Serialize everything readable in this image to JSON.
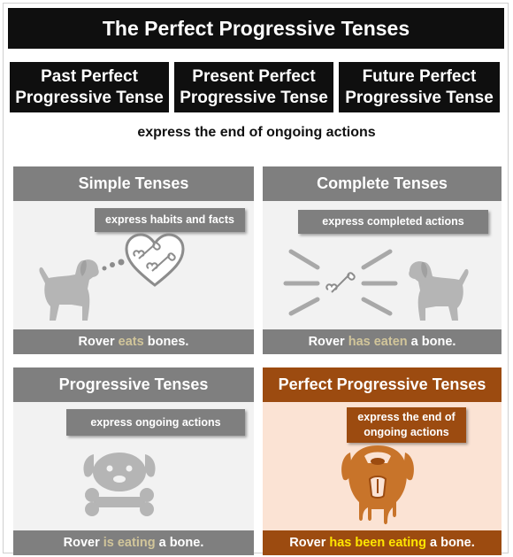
{
  "title": "The Perfect Progressive Tenses",
  "tenses": [
    {
      "line1": "Past Perfect",
      "line2": "Progressive Tense"
    },
    {
      "line1": "Present Perfect",
      "line2": "Progressive Tense"
    },
    {
      "line1": "Future Perfect",
      "line2": "Progressive Tense"
    }
  ],
  "subtitle": "express the end of ongoing actions",
  "panels": {
    "simple": {
      "title": "Simple Tenses",
      "note": "express habits and facts",
      "sentence": {
        "pre": "Rover ",
        "verb": "eats",
        "post": " bones."
      }
    },
    "complete": {
      "title": "Complete Tenses",
      "note": "express completed actions",
      "sentence": {
        "pre": "Rover ",
        "verb": "has eaten",
        "post": " a bone."
      }
    },
    "progressive": {
      "title": "Progressive Tenses",
      "note": "express ongoing actions",
      "sentence": {
        "pre": "Rover ",
        "verb": "is eating",
        "post": " a bone."
      }
    },
    "perfect_progressive": {
      "title": "Perfect Progressive Tenses",
      "note_line1": "express the end of",
      "note_line2": "ongoing actions",
      "sentence": {
        "pre": "Rover ",
        "verb": "has been eating",
        "post": " a bone."
      }
    }
  },
  "colors": {
    "black": "#0f0f0f",
    "panel_gray": "#7f7f7f",
    "panel_bg": "#f2f2f2",
    "accent_brown": "#9c4b10",
    "accent_bg": "#fbe3d4",
    "verb_tan": "#d1c59a",
    "verb_yellow": "#ffe600"
  },
  "icons": [
    "dog-icon",
    "heart-bone-icon",
    "bone-icon",
    "dog-face-icon",
    "drooling-dog-icon"
  ]
}
